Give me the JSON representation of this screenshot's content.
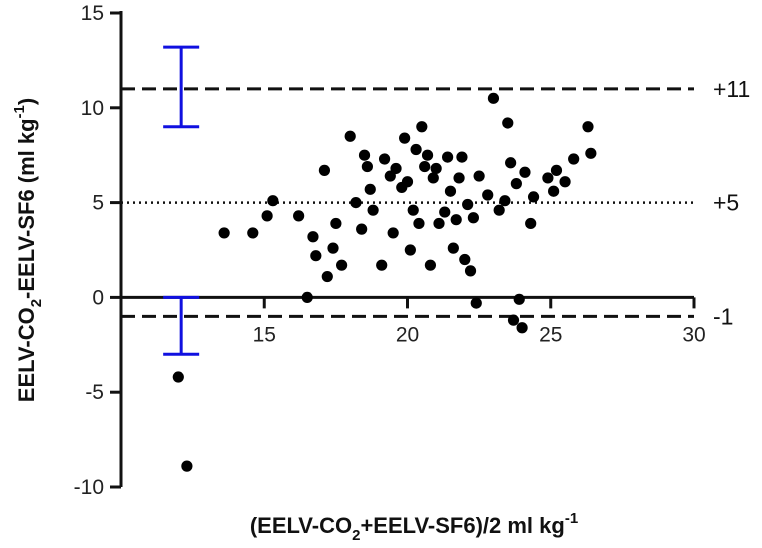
{
  "chart_data": {
    "type": "scatter",
    "title": "",
    "xlabel": {
      "pre": "(EELV-CO",
      "sub": "2",
      "post": "+EELV-SF6)/2 ml kg",
      "sup": "-1"
    },
    "ylabel": {
      "pre": "EELV-CO",
      "sub": "2",
      "post": "-EELV-SF6 (ml kg",
      "sup": "-1",
      "end": ")"
    },
    "xlim": [
      10,
      30
    ],
    "ylim": [
      -10,
      15
    ],
    "x_ticks": [
      15,
      20,
      25,
      30
    ],
    "y_ticks": [
      -10,
      -5,
      0,
      5,
      10,
      15
    ],
    "x_tick_labels": [
      "15",
      "20",
      "25",
      "30"
    ],
    "y_tick_labels": [
      "-10",
      "-5",
      "0",
      "5",
      "10",
      "15"
    ],
    "reference_lines": [
      {
        "value": 11,
        "label": "+11",
        "style": "dashed"
      },
      {
        "value": 5,
        "label": "+5",
        "style": "dotted"
      },
      {
        "value": -1,
        "label": "-1",
        "style": "dashed"
      }
    ],
    "error_bars": [
      {
        "x": 12.1,
        "low": 9,
        "high": 13.2,
        "color": "#1010e0"
      },
      {
        "x": 12.1,
        "low": -3,
        "high": 0,
        "color": "#1010e0"
      }
    ],
    "points": [
      [
        12.0,
        -4.2
      ],
      [
        12.3,
        -8.9
      ],
      [
        13.6,
        3.4
      ],
      [
        14.6,
        3.4
      ],
      [
        15.1,
        4.3
      ],
      [
        15.3,
        5.1
      ],
      [
        16.2,
        4.3
      ],
      [
        16.5,
        0.0
      ],
      [
        16.7,
        3.2
      ],
      [
        16.8,
        2.2
      ],
      [
        17.1,
        6.7
      ],
      [
        17.2,
        1.1
      ],
      [
        17.4,
        2.6
      ],
      [
        17.5,
        3.9
      ],
      [
        17.7,
        1.7
      ],
      [
        18.0,
        8.5
      ],
      [
        18.2,
        5.0
      ],
      [
        18.4,
        3.6
      ],
      [
        18.5,
        7.5
      ],
      [
        18.6,
        6.9
      ],
      [
        18.7,
        5.7
      ],
      [
        18.8,
        4.6
      ],
      [
        19.1,
        1.7
      ],
      [
        19.2,
        7.3
      ],
      [
        19.4,
        6.4
      ],
      [
        19.5,
        3.4
      ],
      [
        19.6,
        6.8
      ],
      [
        19.8,
        5.8
      ],
      [
        19.9,
        8.4
      ],
      [
        20.0,
        6.1
      ],
      [
        20.1,
        2.5
      ],
      [
        20.2,
        4.6
      ],
      [
        20.3,
        7.8
      ],
      [
        20.4,
        3.9
      ],
      [
        20.5,
        9.0
      ],
      [
        20.6,
        6.9
      ],
      [
        20.7,
        7.5
      ],
      [
        20.8,
        1.7
      ],
      [
        20.9,
        6.3
      ],
      [
        21.0,
        6.8
      ],
      [
        21.1,
        3.9
      ],
      [
        21.3,
        4.5
      ],
      [
        21.4,
        7.4
      ],
      [
        21.5,
        5.6
      ],
      [
        21.6,
        2.6
      ],
      [
        21.7,
        4.1
      ],
      [
        21.8,
        6.3
      ],
      [
        21.9,
        7.4
      ],
      [
        22.0,
        2.0
      ],
      [
        22.1,
        4.9
      ],
      [
        22.2,
        1.4
      ],
      [
        22.3,
        4.2
      ],
      [
        22.4,
        -0.3
      ],
      [
        22.5,
        6.4
      ],
      [
        22.8,
        5.4
      ],
      [
        23.0,
        10.5
      ],
      [
        23.2,
        4.6
      ],
      [
        23.4,
        5.1
      ],
      [
        23.5,
        9.2
      ],
      [
        23.6,
        7.1
      ],
      [
        23.7,
        -1.2
      ],
      [
        23.8,
        6.0
      ],
      [
        23.9,
        -0.1
      ],
      [
        24.0,
        -1.6
      ],
      [
        24.1,
        6.6
      ],
      [
        24.3,
        3.9
      ],
      [
        24.4,
        5.3
      ],
      [
        24.9,
        6.3
      ],
      [
        25.1,
        5.6
      ],
      [
        25.2,
        6.7
      ],
      [
        25.5,
        6.1
      ],
      [
        25.8,
        7.3
      ],
      [
        26.3,
        9.0
      ],
      [
        26.4,
        7.6
      ]
    ]
  }
}
